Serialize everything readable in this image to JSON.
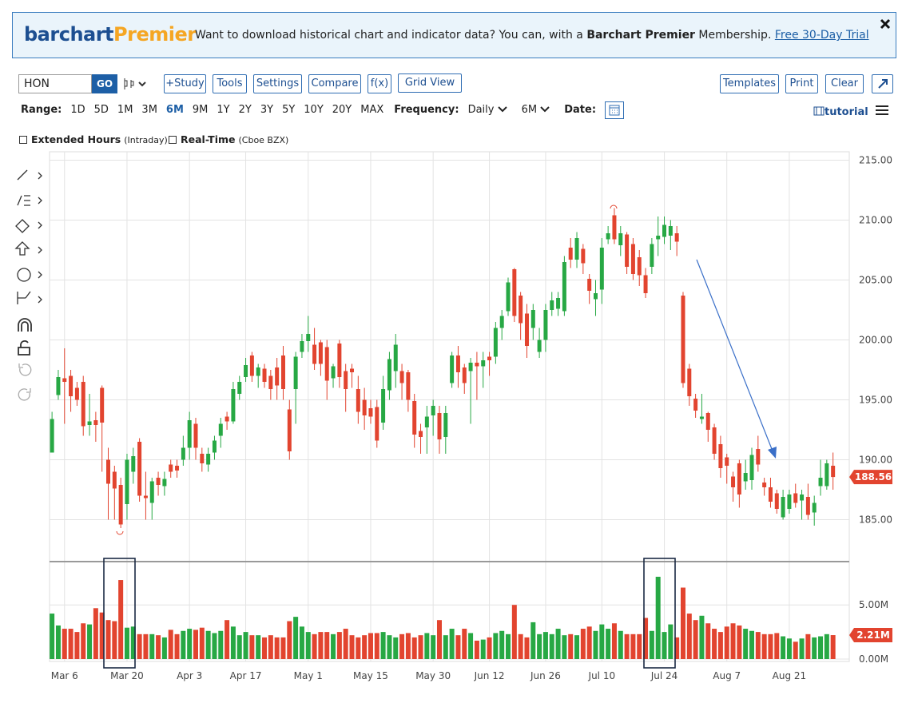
{
  "banner": {
    "brand_1": "barchart",
    "brand_2": "Premier",
    "text_1": "Want to download historical chart and indicator data? You can, with a ",
    "bold": "Barchart Premier",
    "text_2": " Membership. ",
    "link": "Free 30-Day Trial"
  },
  "toolbar": {
    "symbol": "HON",
    "go": "GO",
    "buttons": [
      "+Study",
      "Tools",
      "Settings",
      "Compare",
      "f(x)",
      "Grid View"
    ],
    "right_buttons": [
      "Templates",
      "Print",
      "Clear"
    ]
  },
  "range": {
    "label": "Range:",
    "options": [
      "1D",
      "5D",
      "1M",
      "3M",
      "6M",
      "9M",
      "1Y",
      "2Y",
      "3Y",
      "5Y",
      "10Y",
      "20Y",
      "MAX"
    ],
    "active_index": 4,
    "frequency_label": "Frequency:",
    "frequency": "Daily",
    "period": "6M",
    "date_label": "Date:",
    "tutorial": "tutorial"
  },
  "options": [
    {
      "label": "Extended Hours",
      "note": "(Intraday)"
    },
    {
      "label": "Real-Time",
      "note": "(Cboe BZX)"
    }
  ],
  "chart_data": {
    "type": "candlestick",
    "up_color": "#27a844",
    "down_color": "#e2442f",
    "xlim": [
      -0.4,
      127.6
    ],
    "xticks": [
      {
        "value": 2,
        "label": "Mar 6"
      },
      {
        "value": 12,
        "label": "Mar 20"
      },
      {
        "value": 22,
        "label": "Apr 3"
      },
      {
        "value": 31,
        "label": "Apr 17"
      },
      {
        "value": 41,
        "label": "May 1"
      },
      {
        "value": 51,
        "label": "May 15"
      },
      {
        "value": 61,
        "label": "May 30"
      },
      {
        "value": 70,
        "label": "Jun 12"
      },
      {
        "value": 79,
        "label": "Jun 26"
      },
      {
        "value": 88,
        "label": "Jul 10"
      },
      {
        "value": 98,
        "label": "Jul 24"
      },
      {
        "value": 108,
        "label": "Aug 7"
      },
      {
        "value": 118,
        "label": "Aug 21"
      }
    ],
    "ylim": [
      181.5,
      215.7
    ],
    "yticks": [
      {
        "value": 185,
        "label": "185.00"
      },
      {
        "value": 190,
        "label": "190.00"
      },
      {
        "value": 195,
        "label": "195.00"
      },
      {
        "value": 200,
        "label": "200.00"
      },
      {
        "value": 205,
        "label": "205.00"
      },
      {
        "value": 210,
        "label": "210.00"
      },
      {
        "value": 215,
        "label": "215.00"
      }
    ],
    "volume_ylim": [
      0,
      9
    ],
    "volume_yticks": [
      {
        "value": 0,
        "label": "0.00M"
      },
      {
        "value": 5,
        "label": "5.00M"
      }
    ],
    "volume_last_label": "2.21M",
    "grid": true,
    "open": [
      190.6,
      195.4,
      196.8,
      197,
      196,
      196.5,
      192.9,
      193.3,
      196,
      190,
      189,
      187.9,
      186.3,
      189,
      191.5,
      187,
      186.4,
      188.5,
      187.8,
      189.6,
      189.5,
      190,
      191,
      193,
      190.5,
      189.6,
      190.6,
      192,
      193.6,
      193.2,
      195.5,
      196.9,
      198.7,
      197,
      197.6,
      197,
      197.7,
      198.7,
      194.2,
      195.9,
      199,
      199.9,
      199.6,
      199.8,
      199.4,
      196.8,
      199.7,
      197.4,
      197.6,
      195.9,
      195,
      194.3,
      194.4,
      193.1,
      195.8,
      197.4,
      197.4,
      197.3,
      194.9,
      192.4,
      192.7,
      193.7,
      193.9,
      191.9,
      196.4,
      198.7,
      197.7,
      197.4,
      198.1,
      197.8,
      198.6,
      198.6,
      201,
      202.4,
      205.9,
      203.7,
      202.2,
      201,
      199,
      200,
      202.5,
      202.6,
      202.4,
      207.7,
      206.7,
      207.6,
      205.1,
      203.4,
      204.2,
      208.4,
      210.4,
      207.9,
      208.8,
      208,
      206.9,
      205.4,
      206.1,
      208.4,
      208.6,
      208.7,
      208.9,
      203.7,
      197.6,
      195.1,
      193.4,
      193.9,
      192.7,
      191.3,
      190.2,
      188.6,
      189.7,
      188.2,
      188.3,
      190.9,
      188.1,
      187.7,
      187.2,
      185.2,
      185.9,
      187.2,
      186.6,
      186.9,
      185.6,
      187.8,
      187.8,
      189.5
    ],
    "high": [
      194,
      197.5,
      199.3,
      197.5,
      196.5,
      197,
      195.5,
      194,
      196.2,
      191,
      189.5,
      188.5,
      190.5,
      191,
      191.8,
      189,
      188.5,
      189,
      189,
      190,
      190,
      192,
      194,
      193.5,
      191,
      191,
      192,
      193.5,
      194,
      196.5,
      197,
      198.5,
      199,
      198,
      198,
      197.5,
      198.5,
      199.5,
      195,
      199,
      200.5,
      202,
      201,
      200,
      200,
      198,
      200,
      198,
      198,
      197,
      196,
      195,
      195,
      197,
      199,
      200.5,
      198,
      197.5,
      195.5,
      193,
      194.5,
      195,
      194.5,
      194.5,
      199,
      199.5,
      198,
      198.5,
      199,
      199,
      199,
      201.5,
      202.5,
      205.2,
      206,
      204,
      203,
      203,
      201,
      203,
      204,
      204,
      207,
      208.5,
      209,
      208,
      205.5,
      205,
      208.5,
      209.5,
      211,
      209.5,
      209,
      208.5,
      207.5,
      206,
      208.5,
      210.3,
      210.3,
      210,
      209.5,
      204,
      198,
      195.5,
      195.5,
      194,
      193,
      192,
      190.5,
      189,
      190,
      190,
      191,
      192,
      188.5,
      188.5,
      187.5,
      187.5,
      187.5,
      188,
      187.5,
      188,
      187,
      190,
      190,
      190.6
    ],
    "low": [
      190.6,
      195,
      193,
      194,
      194.5,
      192,
      192,
      191.5,
      189,
      185,
      185,
      184.3,
      185,
      188,
      186.5,
      185,
      185,
      187,
      187,
      188.5,
      188.5,
      189.5,
      190,
      190,
      189,
      189,
      190,
      191,
      192.5,
      193,
      195,
      196.5,
      196.5,
      196,
      196,
      195,
      195,
      195,
      190,
      193,
      198.5,
      199,
      197.5,
      197,
      195,
      196,
      196,
      194,
      196,
      193,
      192.5,
      193,
      191,
      192.5,
      195,
      196,
      195,
      194,
      191,
      190.5,
      190.5,
      192,
      190.5,
      190.5,
      196,
      196,
      195.5,
      193,
      195,
      196,
      197,
      198,
      200,
      202,
      201.5,
      200,
      198.5,
      200,
      198.5,
      199,
      202,
      202,
      202,
      206,
      206,
      205.5,
      203,
      202,
      203,
      208,
      208,
      207,
      205.5,
      205,
      204.5,
      203.5,
      205.5,
      207,
      208,
      207.5,
      207,
      196,
      194.5,
      193.5,
      193,
      191.5,
      190,
      188.5,
      188,
      186.5,
      186,
      187.5,
      187.5,
      189,
      187,
      186,
      185.5,
      185,
      185.5,
      186,
      185,
      185,
      184.5,
      187,
      187.5,
      187.5
    ],
    "close": [
      193.4,
      196.9,
      196.5,
      195.3,
      195,
      192.8,
      193.2,
      192.9,
      193.1,
      188,
      187.6,
      184.6,
      190,
      190.3,
      187,
      186.8,
      188.2,
      187.9,
      188.4,
      189,
      189.1,
      191,
      193.3,
      191,
      189.7,
      190.5,
      191.6,
      193,
      193.2,
      195.9,
      196.5,
      197.9,
      197,
      197.7,
      196.5,
      195.9,
      196.2,
      195.9,
      190.7,
      198.6,
      199.9,
      200.5,
      198,
      198,
      196.6,
      197.8,
      196.9,
      195.9,
      197.3,
      194,
      193.7,
      193.6,
      191.6,
      195.9,
      198.4,
      199.6,
      196.4,
      195,
      192.1,
      191.9,
      193.6,
      194.5,
      191.7,
      193.9,
      198.7,
      197.3,
      196.4,
      198.1,
      197.8,
      198.3,
      198.3,
      201,
      202,
      204.8,
      202,
      201.4,
      199.5,
      202.5,
      200,
      202.5,
      203.3,
      203.5,
      206.5,
      206.7,
      208.5,
      206.4,
      204.1,
      203.9,
      207.7,
      208.9,
      208.4,
      208.9,
      206.1,
      205.5,
      205.4,
      203.9,
      208,
      208.7,
      209.6,
      209.5,
      208.2,
      196.4,
      195.3,
      194.1,
      193.6,
      192.5,
      190.5,
      189.3,
      189.5,
      187.7,
      187.1,
      188.9,
      190.4,
      189.6,
      187.7,
      186.5,
      185.9,
      186.9,
      187.1,
      186.4,
      187.1,
      185.4,
      186.4,
      188.5,
      189.7,
      188.56
    ],
    "volume": [
      4.2,
      3.1,
      2.8,
      2.8,
      2.5,
      3.3,
      3.2,
      4.7,
      4.3,
      3.6,
      3.5,
      7.3,
      2.9,
      3,
      2.3,
      2.3,
      2.3,
      2.2,
      2,
      2.7,
      2.3,
      2.6,
      2.8,
      2.7,
      2.9,
      2.6,
      2.4,
      2.6,
      3.6,
      3,
      2.2,
      2.5,
      2.2,
      2.2,
      2,
      2.2,
      2,
      2,
      3.5,
      3.9,
      3,
      2.5,
      2.3,
      2.5,
      2.5,
      2.3,
      2.5,
      2.8,
      2.2,
      2,
      2.2,
      2.4,
      2.4,
      2.5,
      2.2,
      2,
      2.3,
      2.4,
      2,
      2.2,
      2.4,
      2.2,
      3.6,
      2.2,
      2.8,
      2.2,
      2.8,
      2.4,
      1.7,
      1.8,
      2,
      2.4,
      2.6,
      2.3,
      5,
      2.3,
      2,
      3.4,
      2.3,
      2.5,
      2.3,
      2.8,
      2.2,
      2.3,
      2.2,
      2.8,
      3,
      2.6,
      3.2,
      2.8,
      3.3,
      2.6,
      2.3,
      2.3,
      2.3,
      3.8,
      2.6,
      7.6,
      2.5,
      3.2,
      2,
      6.6,
      4.2,
      3.6,
      4,
      3.3,
      2.8,
      2.5,
      3,
      3.3,
      3.1,
      2.8,
      2.6,
      2.5,
      2.3,
      2.3,
      2.4,
      2.1,
      1.9,
      1.6,
      1.9,
      2.3,
      2,
      2.1,
      2.3,
      2.21
    ]
  }
}
